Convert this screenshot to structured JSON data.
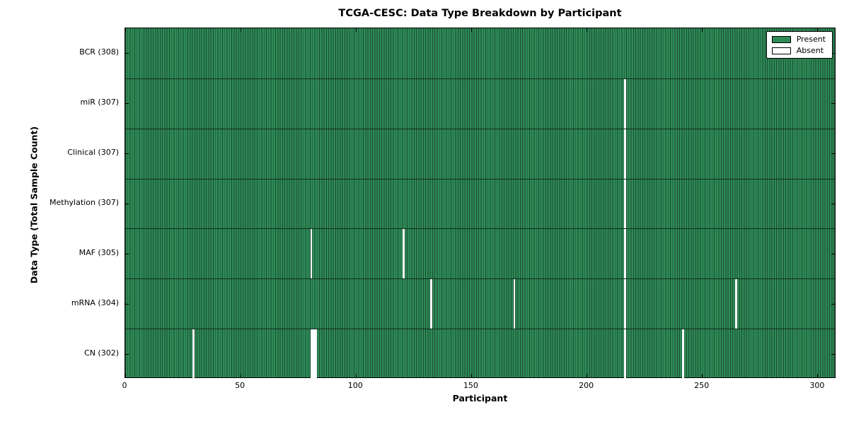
{
  "title": "TCGA-CESC: Data Type Breakdown by Participant",
  "chart_data": {
    "type": "heatmap",
    "title": "TCGA-CESC: Data Type Breakdown by Participant",
    "xlabel": "Participant",
    "ylabel": "Data Type (Total Sample Count)",
    "x_ticks": [
      0,
      50,
      100,
      150,
      200,
      250,
      300
    ],
    "x_range": [
      0,
      308
    ],
    "n_participants": 308,
    "grid": false,
    "legend_position": "upper right",
    "legend": [
      {
        "label": "Present",
        "color": "#2e8b57"
      },
      {
        "label": "Absent",
        "color": "#ffffff"
      }
    ],
    "rows": [
      {
        "label": "BCR (308)",
        "data_type": "BCR",
        "total_sample_count": 308,
        "absent_participants": []
      },
      {
        "label": "miR (307)",
        "data_type": "miR",
        "total_sample_count": 307,
        "absent_participants": [
          216
        ]
      },
      {
        "label": "Clinical (307)",
        "data_type": "Clinical",
        "total_sample_count": 307,
        "absent_participants": [
          216
        ]
      },
      {
        "label": "Methylation (307)",
        "data_type": "Methylation",
        "total_sample_count": 307,
        "absent_participants": [
          216
        ]
      },
      {
        "label": "MAF (305)",
        "data_type": "MAF",
        "total_sample_count": 305,
        "absent_participants": [
          80,
          120,
          216
        ]
      },
      {
        "label": "mRNA (304)",
        "data_type": "mRNA",
        "total_sample_count": 304,
        "absent_participants": [
          132,
          168,
          216,
          264
        ]
      },
      {
        "label": "CN (302)",
        "data_type": "CN",
        "total_sample_count": 302,
        "absent_participants": [
          29,
          80,
          81,
          82,
          216,
          241
        ]
      }
    ],
    "colors": {
      "present": "#2e8b57",
      "absent": "#ffffff",
      "bar_edge": "#1b4a31"
    }
  }
}
